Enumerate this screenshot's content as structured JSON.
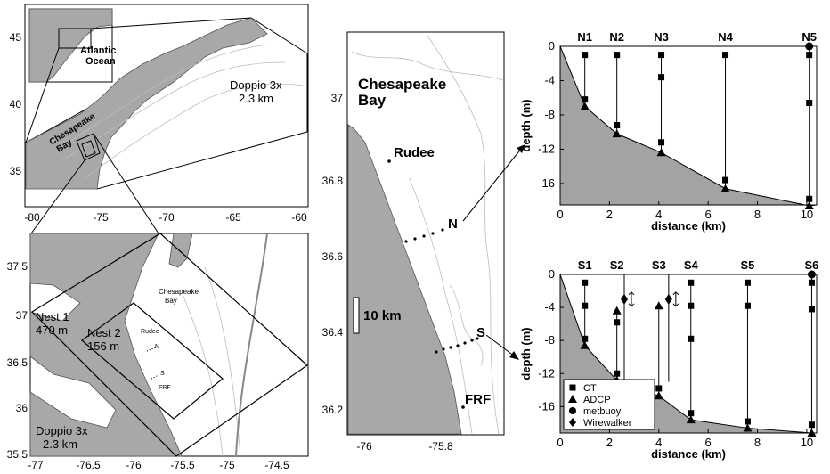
{
  "overview_map": {
    "inset_label": [
      "Atlantic",
      "Ocean"
    ],
    "domain_label": [
      "Doppio 3x",
      "2.3 km"
    ],
    "bay_label": [
      "Chesapeake",
      "Bay"
    ],
    "x_ticks": [
      "-80",
      "-75",
      "-70",
      "-65",
      "-60"
    ],
    "y_ticks": [
      "45",
      "40",
      "35"
    ]
  },
  "nest_map": {
    "bay_label": [
      "Chesapeake",
      "Bay"
    ],
    "nest1_label": [
      "Nest 1",
      "470 m"
    ],
    "nest2_label": [
      "Nest 2",
      "156 m"
    ],
    "domain_label": [
      "Doppio 3x",
      "2.3 km"
    ],
    "station_labels": [
      "Rudee",
      "N",
      "S",
      "FRF"
    ],
    "x_ticks": [
      "-77",
      "-76.5",
      "-76",
      "-75.5",
      "-75",
      "-74.5"
    ],
    "y_ticks": [
      "37.5",
      "37",
      "36.5",
      "36",
      "35.5"
    ]
  },
  "zoom_map": {
    "bay_label": [
      "Chesapeake",
      "Bay"
    ],
    "rudee_label": "Rudee",
    "n_label": "N",
    "s_label": "S",
    "frf_label": "FRF",
    "scale_label": "10 km",
    "x_ticks": [
      "-76",
      "-75.8"
    ],
    "y_ticks": [
      "37",
      "36.8",
      "36.6",
      "36.4",
      "36.2"
    ]
  },
  "chart_data": [
    {
      "type": "scatter",
      "xlabel": "distance (km)",
      "ylabel": "depth (m)",
      "xlim": [
        0,
        10.4
      ],
      "ylim": [
        -18.5,
        0
      ],
      "x_ticks": [
        "0",
        "2",
        "4",
        "6",
        "8",
        "10"
      ],
      "y_ticks": [
        "0",
        "-4",
        "-8",
        "-12",
        "-16"
      ],
      "bottom_profile": {
        "x": [
          0,
          1,
          2.3,
          4.1,
          6.7,
          10.1
        ],
        "depth": [
          0,
          -7,
          -10.2,
          -12.4,
          -16.6,
          -18.6
        ]
      },
      "stations": [
        {
          "name": "N1",
          "x": 1.0,
          "ct": [
            -1,
            -6.2
          ],
          "adcp": [
            -7
          ],
          "metbuoy": []
        },
        {
          "name": "N2",
          "x": 2.3,
          "ct": [
            -1,
            -9.2
          ],
          "adcp": [
            -10.2
          ],
          "metbuoy": []
        },
        {
          "name": "N3",
          "x": 4.1,
          "ct": [
            -1,
            -3.6,
            -11.2
          ],
          "adcp": [
            -12.4
          ],
          "metbuoy": []
        },
        {
          "name": "N4",
          "x": 6.7,
          "ct": [
            -1,
            -15.6
          ],
          "adcp": [
            -16.6
          ],
          "metbuoy": []
        },
        {
          "name": "N5",
          "x": 10.1,
          "ct": [
            -1,
            -6.6,
            -17.8
          ],
          "adcp": [
            -18.6
          ],
          "metbuoy": [
            0
          ]
        }
      ],
      "wirewalkers": []
    },
    {
      "type": "scatter",
      "xlabel": "distance (km)",
      "ylabel": "depth (m)",
      "xlim": [
        0,
        10.4
      ],
      "ylim": [
        -19.2,
        0
      ],
      "x_ticks": [
        "0",
        "2",
        "4",
        "6",
        "8",
        "10"
      ],
      "y_ticks": [
        "0",
        "-4",
        "-8",
        "-12",
        "-16"
      ],
      "bottom_profile": {
        "x": [
          0,
          1,
          2.3,
          4.0,
          5.3,
          7.6,
          10.2
        ],
        "depth": [
          0,
          -8.6,
          -12.8,
          -14.7,
          -17.6,
          -18.6,
          -19.2
        ]
      },
      "stations": [
        {
          "name": "S1",
          "x": 1.0,
          "ct": [
            -1,
            -3.8,
            -7.8
          ],
          "adcp": [
            -8.6
          ],
          "metbuoy": []
        },
        {
          "name": "S2",
          "x": 2.3,
          "ct": [
            -5.8,
            -12
          ],
          "adcp": [
            -4.4,
            -12.8
          ],
          "metbuoy": []
        },
        {
          "name": "S3",
          "x": 4.0,
          "ct": [
            -13.8
          ],
          "adcp": [
            -3.8,
            -14.7
          ],
          "metbuoy": []
        },
        {
          "name": "S4",
          "x": 5.3,
          "ct": [
            -1,
            -3.8,
            -7.8,
            -16.8
          ],
          "adcp": [
            -17.6
          ],
          "metbuoy": []
        },
        {
          "name": "S5",
          "x": 7.6,
          "ct": [
            -1,
            -3.8,
            -17.8
          ],
          "adcp": [
            -18.6
          ],
          "metbuoy": []
        },
        {
          "name": "S6",
          "x": 10.2,
          "ct": [
            -1,
            -4.2,
            -18.2
          ],
          "adcp": [
            -19.2
          ],
          "metbuoy": [
            0
          ]
        }
      ],
      "wirewalkers": [
        {
          "x": 2.6,
          "depth": -3
        },
        {
          "x": 4.4,
          "depth": -3
        }
      ],
      "legend": [
        "CT",
        "ADCP",
        "metbuoy",
        "Wirewalker"
      ]
    }
  ]
}
